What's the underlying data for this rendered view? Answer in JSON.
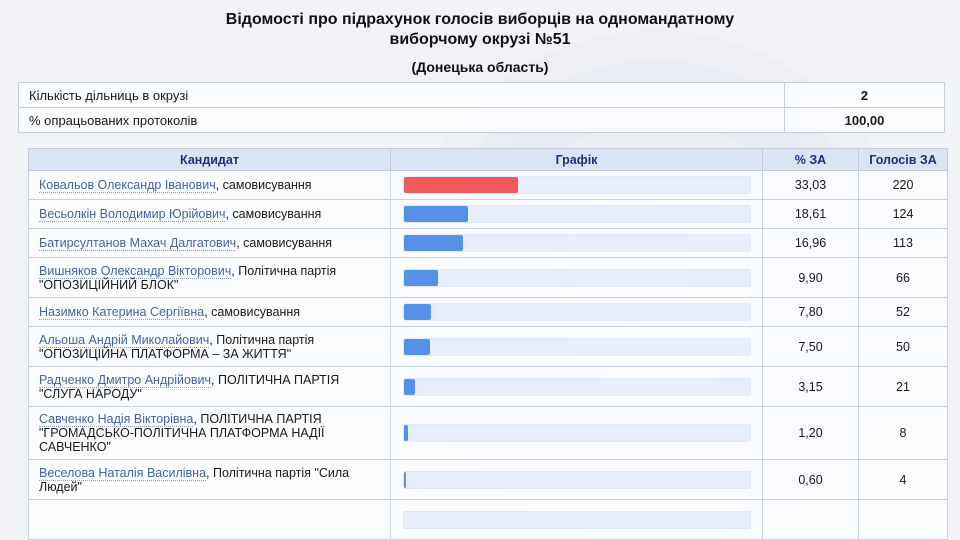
{
  "page": {
    "title_line1": "Відомості про підрахунок голосів виборців на одномандатному",
    "title_line2": "виборчому окрузі №51",
    "subtitle": "(Донецька область)"
  },
  "summary": {
    "rows": [
      {
        "label": "Кількість дільниць в окрузі",
        "value": "2"
      },
      {
        "label": "% опрацьованих протоколів",
        "value": "100,00"
      }
    ]
  },
  "results_table": {
    "headers": {
      "candidate": "Кандидат",
      "graph": "Графік",
      "percent": "% ЗА",
      "votes": "Голосів ЗА"
    },
    "rows": [
      {
        "name": "Ковальов Олександр Іванович",
        "affiliation": ", самовисування",
        "percent_label": "33,03",
        "percent": 33.03,
        "votes": "220",
        "bar_color": "#f05a5a"
      },
      {
        "name": "Весьолкін Володимир Юрійович",
        "affiliation": ", самовисування",
        "percent_label": "18,61",
        "percent": 18.61,
        "votes": "124",
        "bar_color": "#5591e6"
      },
      {
        "name": "Батирсултанов Махач Далгатович",
        "affiliation": ", самовисування",
        "percent_label": "16,96",
        "percent": 16.96,
        "votes": "113",
        "bar_color": "#5591e6"
      },
      {
        "name": "Вишняков Олександр Вікторович",
        "affiliation": ", Політична партія \"ОПОЗИЦІЙНИЙ БЛОК\"",
        "percent_label": "9,90",
        "percent": 9.9,
        "votes": "66",
        "bar_color": "#5591e6"
      },
      {
        "name": "Назимко Катерина Сергіївна",
        "affiliation": ", самовисування",
        "percent_label": "7,80",
        "percent": 7.8,
        "votes": "52",
        "bar_color": "#5591e6"
      },
      {
        "name": "Альоша Андрій Миколайович",
        "affiliation": ", Політична партія \"ОПОЗИЦІЙНА ПЛАТФОРМА – ЗА ЖИТТЯ\"",
        "percent_label": "7,50",
        "percent": 7.5,
        "votes": "50",
        "bar_color": "#5591e6"
      },
      {
        "name": "Радченко Дмитро Андрійович",
        "affiliation": ", ПОЛІТИЧНА ПАРТІЯ \"СЛУГА НАРОДУ\"",
        "percent_label": "3,15",
        "percent": 3.15,
        "votes": "21",
        "bar_color": "#5591e6"
      },
      {
        "name": "Савченко Надія Вікторівна",
        "affiliation": ", ПОЛІТИЧНА ПАРТІЯ \"ГРОМАДСЬКО-ПОЛІТИЧНА ПЛАТФОРМА НАДІЇ САВЧЕНКО\"",
        "percent_label": "1,20",
        "percent": 1.2,
        "votes": "8",
        "bar_color": "#5591e6"
      },
      {
        "name": "Веселова Наталія Василівна",
        "affiliation": ", Політична партія \"Сила Людей\"",
        "percent_label": "0,60",
        "percent": 0.6,
        "votes": "4",
        "bar_color": "#5591e6"
      },
      {
        "name": "",
        "affiliation": "",
        "percent_label": "",
        "percent": 0,
        "votes": "",
        "bar_color": "#5591e6",
        "partial": true
      }
    ]
  },
  "chart_data": {
    "type": "bar",
    "orientation": "horizontal",
    "title": "Графік",
    "categories": [
      "Ковальов Олександр Іванович",
      "Весьолкін Володимир Юрійович",
      "Батирсултанов Махач Далгатович",
      "Вишняков Олександр Вікторович",
      "Назимко Катерина Сергіївна",
      "Альоша Андрій Миколайович",
      "Радченко Дмитро Андрійович",
      "Савченко Надія Вікторівна",
      "Веселова Наталія Василівна"
    ],
    "series": [
      {
        "name": "% ЗА",
        "values": [
          33.03,
          18.61,
          16.96,
          9.9,
          7.8,
          7.5,
          3.15,
          1.2,
          0.6
        ]
      },
      {
        "name": "Голосів ЗА",
        "values": [
          220,
          124,
          113,
          66,
          52,
          50,
          21,
          8,
          4
        ]
      }
    ],
    "xlim": [
      0,
      100
    ],
    "bar_colors": [
      "#f05a5a",
      "#5591e6",
      "#5591e6",
      "#5591e6",
      "#5591e6",
      "#5591e6",
      "#5591e6",
      "#5591e6",
      "#5591e6"
    ]
  },
  "colors": {
    "leader_bar": "#f05a5a",
    "bar": "#5591e6",
    "bar_track": "#e9eefb",
    "header_bg": "#dce3f4",
    "header_text": "#232d84",
    "link": "#47639f",
    "page_bg": "#f1f3f7"
  }
}
